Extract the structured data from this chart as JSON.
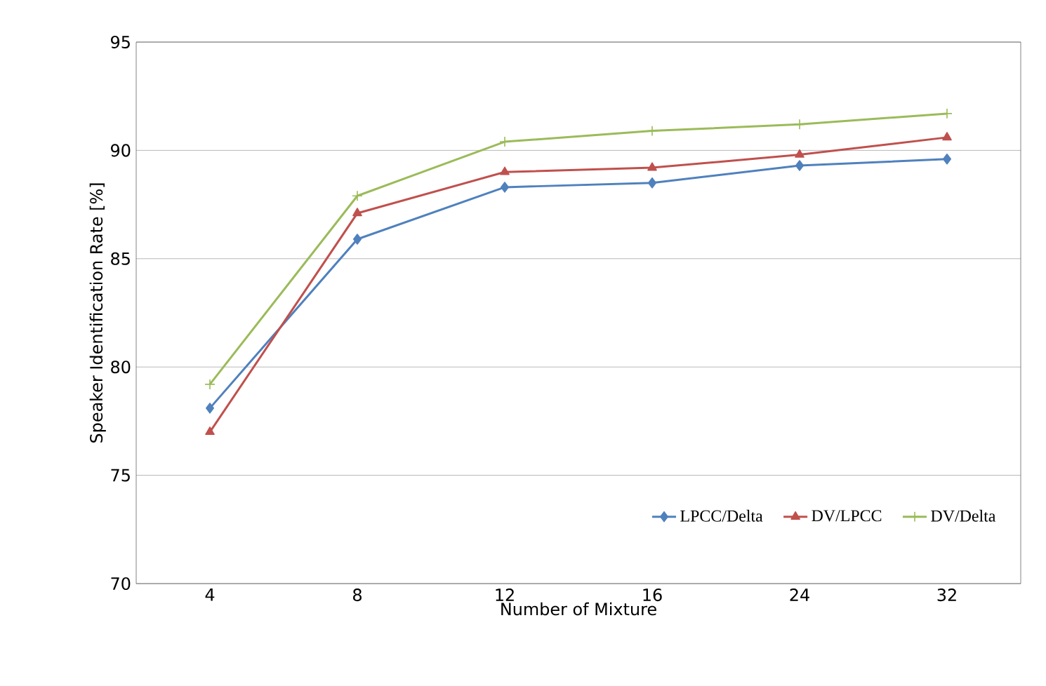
{
  "chart_data": {
    "type": "line",
    "xlabel": "Number  of  Mixture",
    "ylabel": "Speaker Identification Rate [%]",
    "categories": [
      "4",
      "8",
      "12",
      "16",
      "24",
      "32"
    ],
    "series": [
      {
        "name": "LPCC/Delta",
        "color": "#4f81bd",
        "marker": "diamond",
        "values": [
          78.1,
          85.9,
          88.3,
          88.5,
          89.3,
          89.6
        ]
      },
      {
        "name": "DV/LPCC",
        "color": "#c0504d",
        "marker": "triangle",
        "values": [
          77.0,
          87.1,
          89.0,
          89.2,
          89.8,
          90.6
        ]
      },
      {
        "name": "DV/Delta",
        "color": "#9bbb59",
        "marker": "cross",
        "values": [
          79.2,
          87.9,
          90.4,
          90.9,
          91.2,
          91.7
        ]
      }
    ],
    "ylim": [
      70,
      95
    ],
    "yticks": [
      70,
      75,
      80,
      85,
      90,
      95
    ],
    "grid": "y",
    "legend": "bottom right",
    "line_style": "solid"
  }
}
